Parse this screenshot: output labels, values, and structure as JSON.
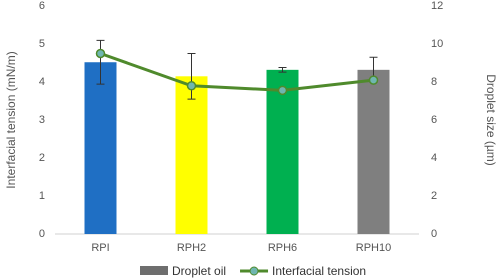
{
  "chart_data": {
    "type": "bar-line",
    "categories": [
      "RPI",
      "RPH2",
      "RPH6",
      "RPH10"
    ],
    "ylabel": "Interfacial tension (mN/m)",
    "ylim": [
      0,
      6
    ],
    "yticks": [
      0,
      1,
      2,
      3,
      4,
      5,
      6
    ],
    "y2label": "Droplet size (µm)",
    "y2lim": [
      0,
      12
    ],
    "y2ticks": [
      0,
      2,
      4,
      6,
      8,
      10,
      12
    ],
    "series": [
      {
        "name": "Droplet oil",
        "kind": "bar",
        "axis": "y2",
        "color": "#6e6e6e",
        "colors": [
          "#1f6fc4",
          "#ffff00",
          "#00b050",
          "#7f7f7f"
        ],
        "values": [
          9.04,
          8.3,
          8.64,
          8.64
        ],
        "errors": [
          1.15,
          1.2,
          0.12,
          0.66
        ]
      },
      {
        "name": "Interfacial tension",
        "kind": "line",
        "color": "#4f8a2c",
        "marker_color": "#6fb6b0",
        "values": [
          4.75,
          3.9,
          3.78,
          4.05
        ]
      }
    ]
  }
}
